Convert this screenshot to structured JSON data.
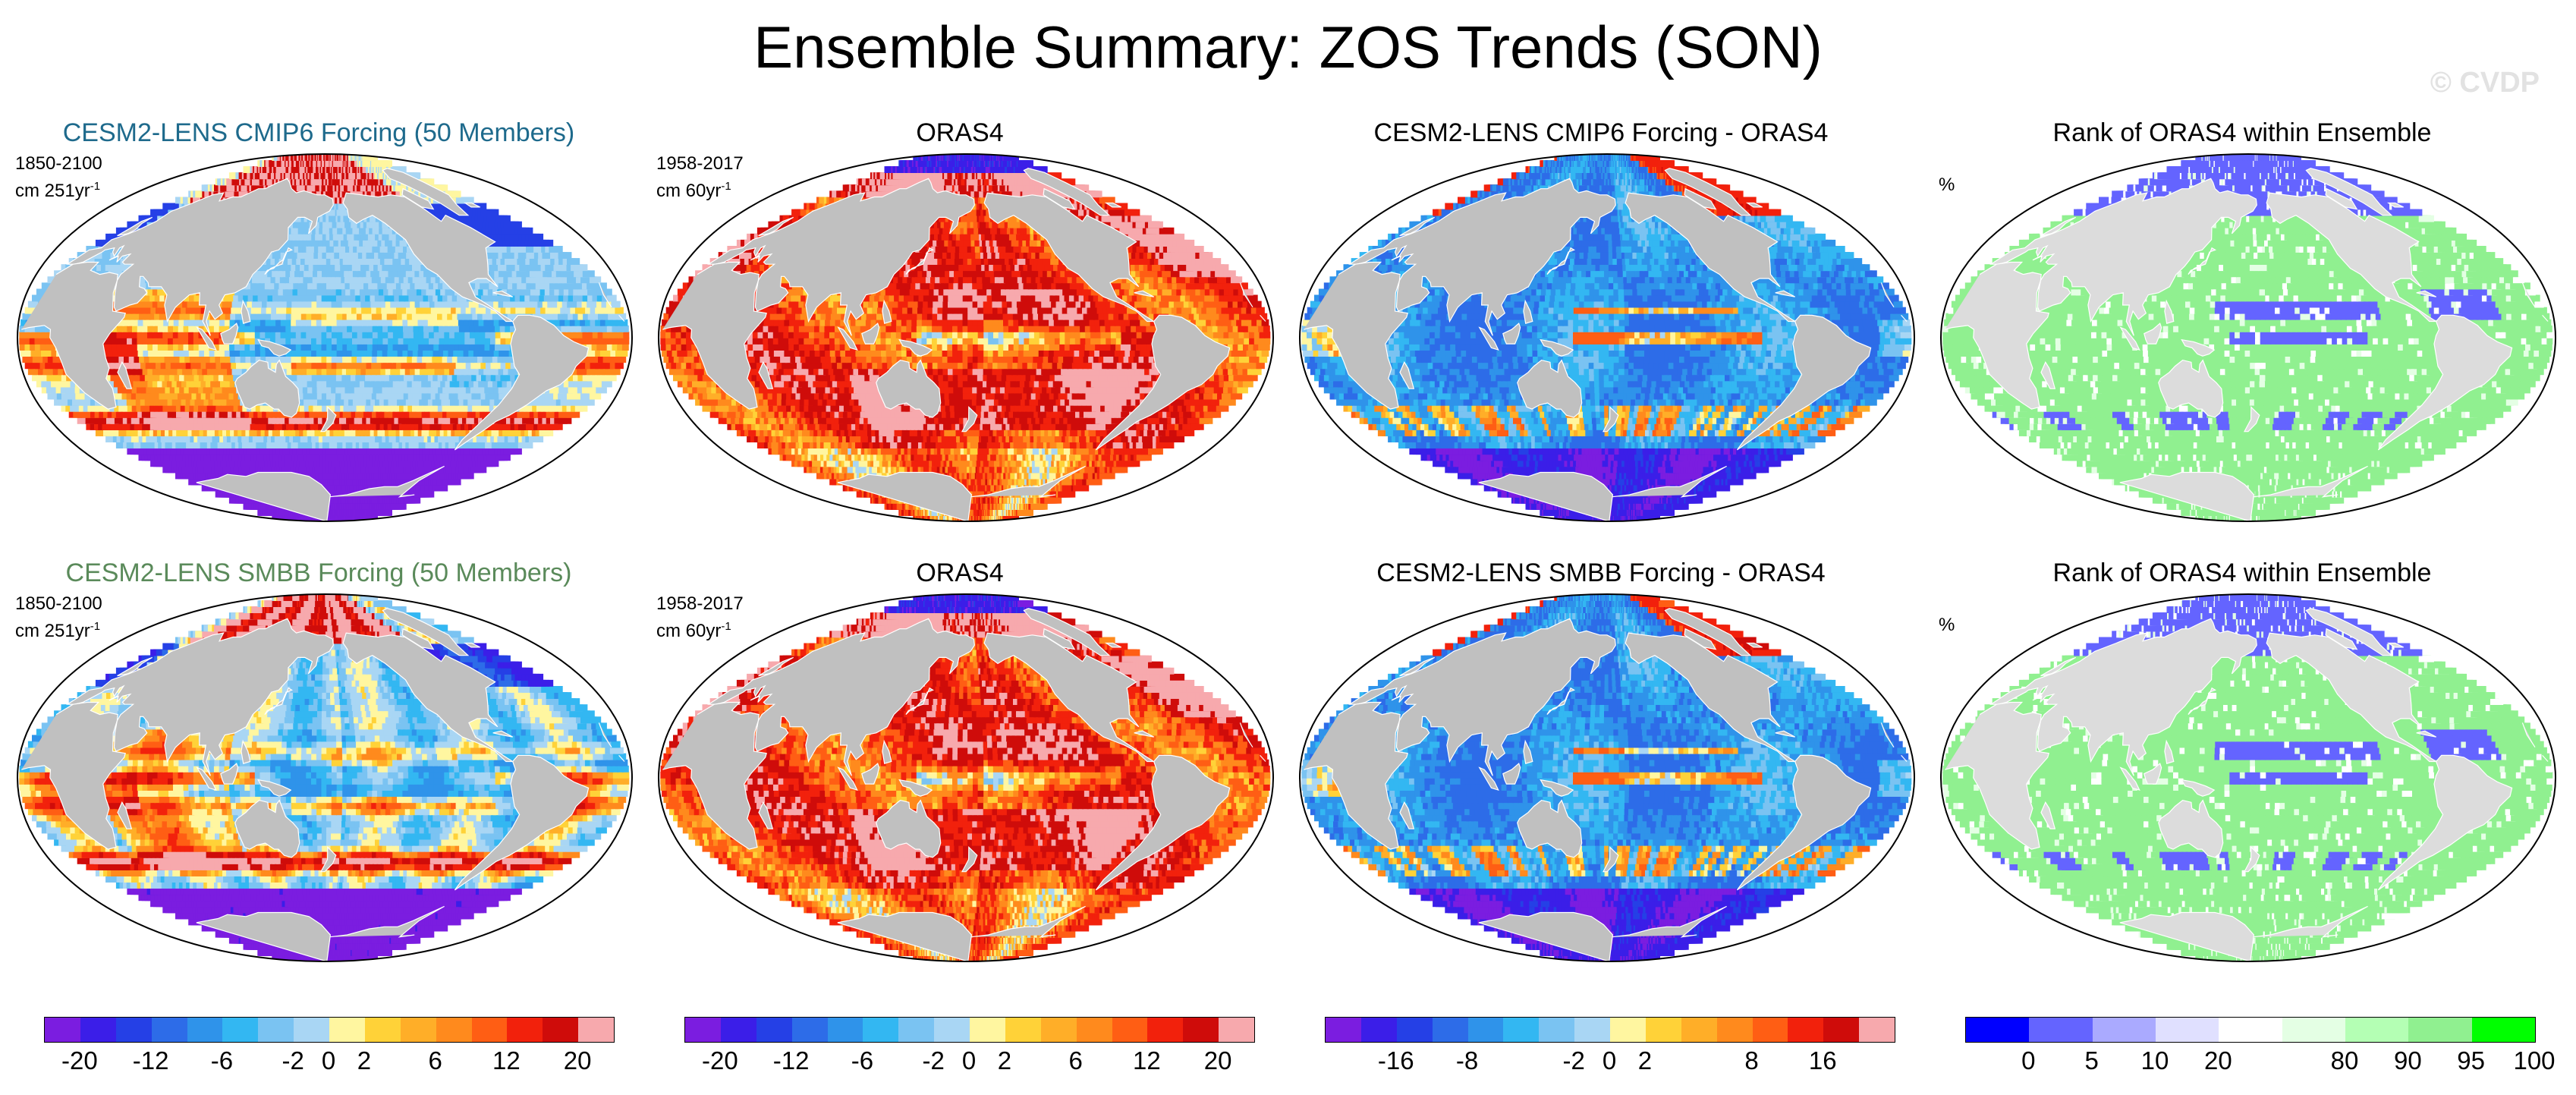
{
  "figure": {
    "title": "Ensemble Summary: ZOS Trends (SON)",
    "watermark": "© CVDP"
  },
  "palettes": {
    "trend": [
      "#7b1de0",
      "#3b1ee8",
      "#2540e6",
      "#2d6ce8",
      "#2f93ea",
      "#33b7f2",
      "#7ac3f2",
      "#a9d6f4",
      "#fff6a0",
      "#ffd238",
      "#ffae28",
      "#ff8a1d",
      "#ff5e14",
      "#f2210c",
      "#cf0c0a",
      "#f7a9ad"
    ],
    "rank": [
      "#0000ff",
      "#6464ff",
      "#aaaaff",
      "#e0e0ff",
      "#ffffff",
      "#e4ffe4",
      "#b4ffb4",
      "#90f090",
      "#00ff00"
    ],
    "land": "#c0c0c0",
    "coast": "#ffffff"
  },
  "panels": [
    {
      "title": "CESM2-LENS CMIP6 Forcing (50 Members)",
      "title_color": "#1e6a8c",
      "period": "1850-2100",
      "unit": "cm 251yr",
      "unit_exp": "-1",
      "map_type": "model"
    },
    {
      "title": "ORAS4",
      "title_color": "#000000",
      "period": "1958-2017",
      "unit": "cm 60yr",
      "unit_exp": "-1",
      "map_type": "obs"
    },
    {
      "title": "CESM2-LENS CMIP6 Forcing - ORAS4",
      "title_color": "#000000",
      "period": "",
      "unit": "",
      "unit_exp": "",
      "map_type": "diff"
    },
    {
      "title": "Rank of ORAS4 within Ensemble",
      "title_color": "#000000",
      "period": "",
      "unit": "%",
      "unit_exp": "",
      "map_type": "rank"
    },
    {
      "title": "CESM2-LENS SMBB Forcing (50 Members)",
      "title_color": "#5a8a5a",
      "period": "1850-2100",
      "unit": "cm 251yr",
      "unit_exp": "-1",
      "map_type": "model"
    },
    {
      "title": "ORAS4",
      "title_color": "#000000",
      "period": "1958-2017",
      "unit": "cm 60yr",
      "unit_exp": "-1",
      "map_type": "obs"
    },
    {
      "title": "CESM2-LENS SMBB Forcing - ORAS4",
      "title_color": "#000000",
      "period": "",
      "unit": "",
      "unit_exp": "",
      "map_type": "diff"
    },
    {
      "title": "Rank of ORAS4 within Ensemble",
      "title_color": "#000000",
      "period": "",
      "unit": "%",
      "unit_exp": "",
      "map_type": "rank"
    }
  ],
  "colorbars": [
    {
      "palette": "trend",
      "labels": [
        "-20",
        "-12",
        "-6",
        "-2",
        "0",
        "2",
        "6",
        "12",
        "20"
      ],
      "label_boundaries": [
        1,
        3,
        5,
        7,
        8,
        9,
        11,
        13,
        15
      ]
    },
    {
      "palette": "trend",
      "labels": [
        "-20",
        "-12",
        "-6",
        "-2",
        "0",
        "2",
        "6",
        "12",
        "20"
      ],
      "label_boundaries": [
        1,
        3,
        5,
        7,
        8,
        9,
        11,
        13,
        15
      ]
    },
    {
      "palette": "trend",
      "labels": [
        "-16",
        "-8",
        "-2",
        "0",
        "2",
        "8",
        "16"
      ],
      "label_boundaries": [
        2,
        4,
        7,
        8,
        9,
        12,
        14
      ]
    },
    {
      "palette": "rank",
      "labels": [
        "0",
        "5",
        "10",
        "20",
        "80",
        "90",
        "95",
        "100"
      ],
      "label_boundaries": [
        1,
        2,
        3,
        4,
        6,
        7,
        8,
        9
      ]
    }
  ]
}
